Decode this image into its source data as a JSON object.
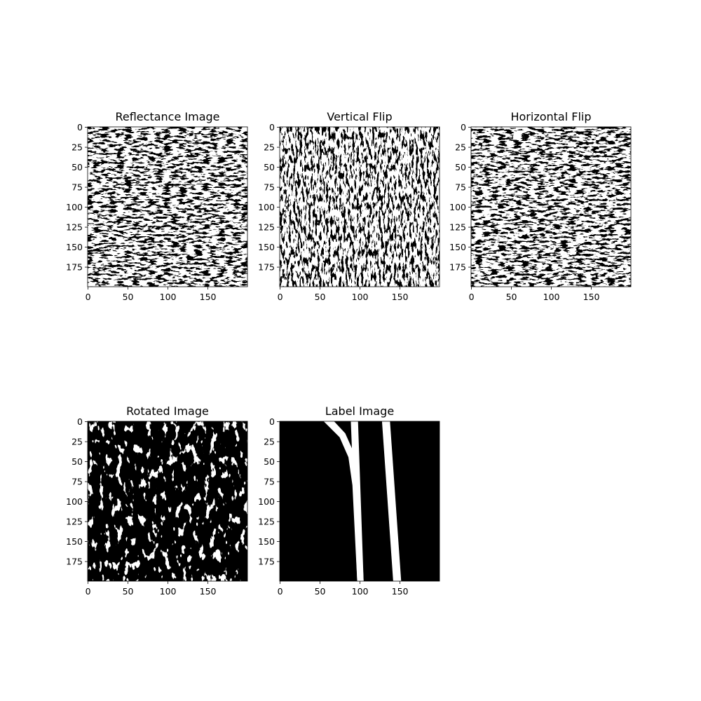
{
  "figure": {
    "panels": [
      {
        "id": "reflectance",
        "title": "Reflectance Image",
        "content": "dense-binary-texture-bright-upper",
        "x_ticks": [
          "0",
          "50",
          "100",
          "150"
        ],
        "y_ticks": [
          "0",
          "25",
          "50",
          "75",
          "100",
          "125",
          "150",
          "175"
        ],
        "colors": {
          "background": "#ffffff",
          "foreground": "#000000"
        }
      },
      {
        "id": "vertical-flip",
        "title": "Vertical Flip",
        "content": "dense-binary-texture-flipped-vertically",
        "x_ticks": [
          "0",
          "50",
          "100",
          "150"
        ],
        "y_ticks": [
          "0",
          "25",
          "50",
          "75",
          "100",
          "125",
          "150",
          "175"
        ],
        "colors": {
          "background": "#ffffff",
          "foreground": "#000000"
        }
      },
      {
        "id": "horizontal-flip",
        "title": "Horizontal Flip",
        "content": "dense-binary-texture-flipped-horizontally",
        "x_ticks": [
          "0",
          "50",
          "100",
          "150"
        ],
        "y_ticks": [
          "0",
          "25",
          "50",
          "75",
          "100",
          "125",
          "150",
          "175"
        ],
        "colors": {
          "background": "#ffffff",
          "foreground": "#000000"
        }
      },
      {
        "id": "rotated",
        "title": "Rotated Image",
        "content": "sparse-binary-texture-rotated",
        "x_ticks": [
          "0",
          "50",
          "100",
          "150"
        ],
        "y_ticks": [
          "0",
          "25",
          "50",
          "75",
          "100",
          "125",
          "150",
          "175"
        ],
        "colors": {
          "background": "#ffffff",
          "foreground": "#000000"
        }
      },
      {
        "id": "label",
        "title": "Label Image",
        "content": "lane-label-mask",
        "x_ticks": [
          "0",
          "50",
          "100",
          "150"
        ],
        "y_ticks": [
          "0",
          "25",
          "50",
          "75",
          "100",
          "125",
          "150",
          "175"
        ],
        "colors": {
          "background": "#000000",
          "foreground": "#ffffff"
        }
      }
    ]
  }
}
